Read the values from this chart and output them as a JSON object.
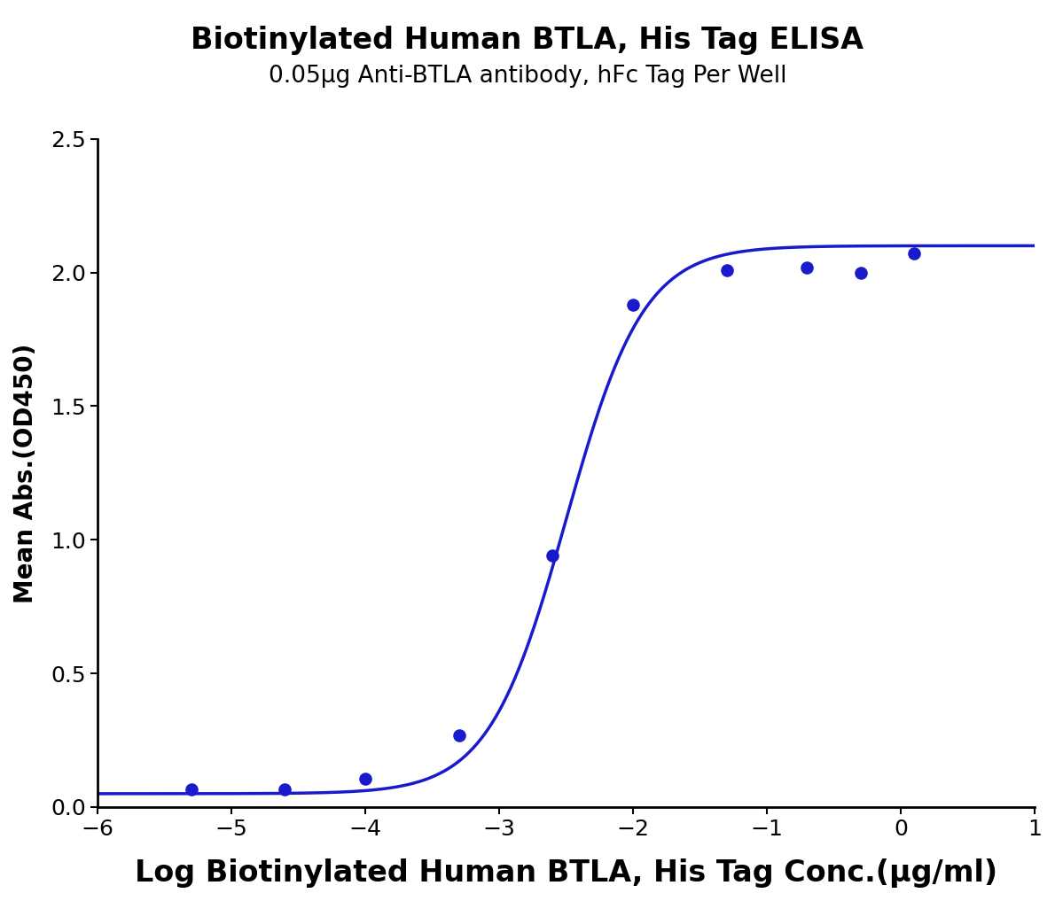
{
  "title": "Biotinylated Human BTLA, His Tag ELISA",
  "subtitle": "0.05μg Anti-BTLA antibody, hFc Tag Per Well",
  "xlabel": "Log Biotinylated Human BTLA, His Tag Conc.(μg/ml)",
  "ylabel": "Mean Abs.(OD450)",
  "curve_color": "#1a1acd",
  "dot_color": "#1a1acd",
  "xlim": [
    -6,
    1
  ],
  "ylim": [
    0.0,
    2.5
  ],
  "xticks": [
    -6,
    -5,
    -4,
    -3,
    -2,
    -1,
    0,
    1
  ],
  "yticks": [
    0.0,
    0.5,
    1.0,
    1.5,
    2.0,
    2.5
  ],
  "data_x": [
    -5.3,
    -4.6,
    -4.0,
    -3.3,
    -2.6,
    -2.0,
    -1.3,
    -0.7,
    -0.3,
    0.1
  ],
  "data_y": [
    0.065,
    0.065,
    0.105,
    0.27,
    0.94,
    1.88,
    2.01,
    2.02,
    2.0,
    2.07
  ],
  "title_fontsize": 24,
  "subtitle_fontsize": 19,
  "xlabel_fontsize": 24,
  "ylabel_fontsize": 20,
  "tick_fontsize": 18,
  "dot_size": 90,
  "line_width": 2.5,
  "background_color": "#ffffff"
}
